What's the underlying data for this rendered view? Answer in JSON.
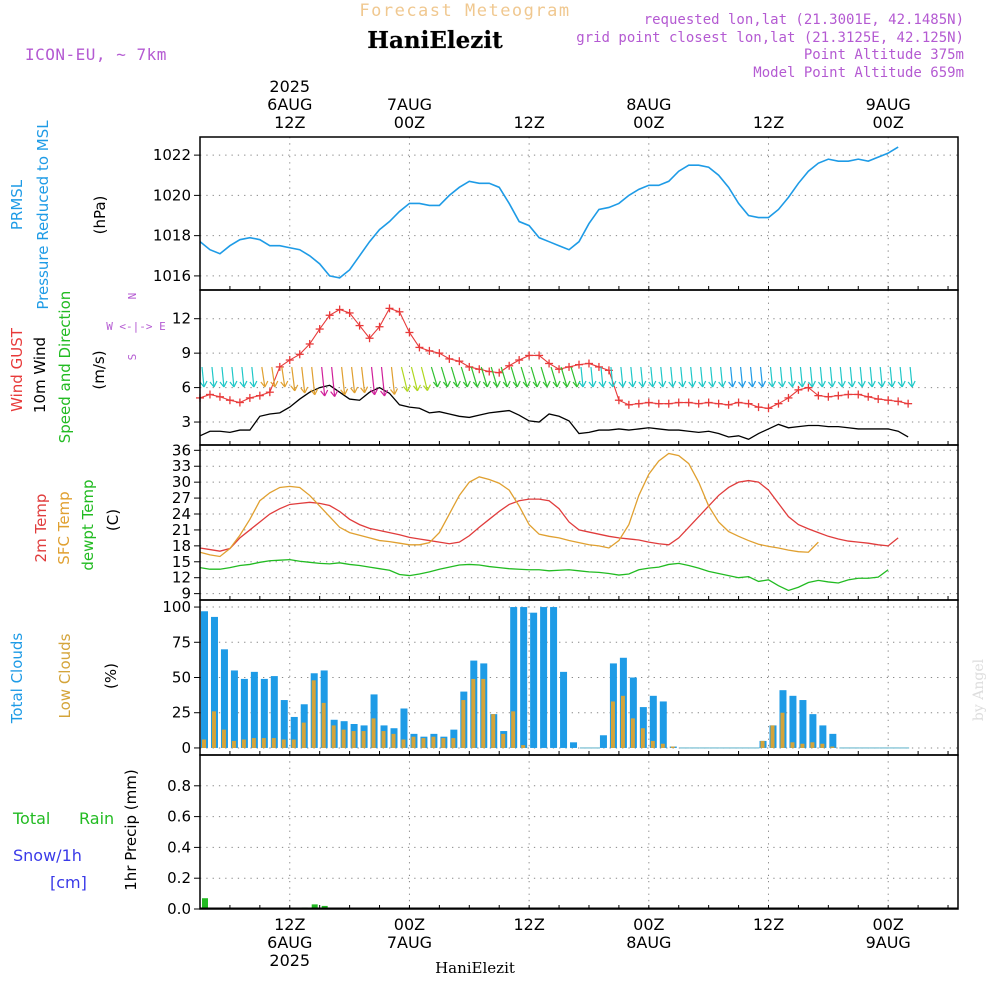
{
  "header": {
    "title": "Forecast Meteogram",
    "location": "HaniElezit",
    "model": "ICON-EU, ~ 7km",
    "requested": "requested lon,lat (21.3001E, 42.1485N)",
    "gridpoint": "grid point closest lon,lat (21.3125E, 42.125N)",
    "point_alt": "Point Altitude 375m",
    "model_alt": "Model Point Altitude 659m",
    "footer": "HaniElezit",
    "watermark": "by Angel"
  },
  "colors": {
    "pressure": "#1e9be6",
    "gust": "#e83a3a",
    "wind": "#000000",
    "temp2m": "#e03c3c",
    "sfc": "#e0a030",
    "dewpt": "#22bb22",
    "total_clouds": "#1e9be6",
    "low_clouds": "#d4a43a",
    "rain": "#22bb22",
    "snow": "#3a3ae8",
    "purple": "#b45ad2",
    "title_orange": "#f0c890"
  },
  "time_axis": {
    "top_labels": [
      {
        "t": 9,
        "lines": [
          "2025",
          "6AUG",
          "12Z"
        ]
      },
      {
        "t": 21,
        "lines": [
          "7AUG",
          "00Z"
        ]
      },
      {
        "t": 33,
        "lines": [
          "12Z"
        ]
      },
      {
        "t": 45,
        "lines": [
          "8AUG",
          "00Z"
        ]
      },
      {
        "t": 57,
        "lines": [
          "12Z"
        ]
      },
      {
        "t": 69,
        "lines": [
          "9AUG",
          "00Z"
        ]
      }
    ],
    "bottom_labels": [
      {
        "t": 9,
        "lines": [
          "12Z",
          "6AUG",
          "2025"
        ]
      },
      {
        "t": 21,
        "lines": [
          "00Z",
          "7AUG"
        ]
      },
      {
        "t": 33,
        "lines": [
          "12Z"
        ]
      },
      {
        "t": 45,
        "lines": [
          "00Z",
          "8AUG"
        ]
      },
      {
        "t": 57,
        "lines": [
          "12Z"
        ]
      },
      {
        "t": 69,
        "lines": [
          "00Z",
          "9AUG"
        ]
      }
    ]
  },
  "panels": {
    "pressure": {
      "labels": [
        "PRMSL",
        "Pressure Reduced to MSL"
      ],
      "unit": "(hPa)"
    },
    "wind": {
      "labels": [
        "Wind GUST",
        "10m Wind",
        "Speed and Direction"
      ],
      "unit": "(m/s)",
      "compass": [
        "N",
        "W <-|-> E",
        "S"
      ]
    },
    "temp": {
      "labels": [
        "2m Temp",
        "SFC Temp",
        "dewpt Temp"
      ],
      "unit": "(C)"
    },
    "clouds": {
      "labels": [
        "Total Clouds",
        "Low Clouds"
      ],
      "unit": "(%)"
    },
    "precip": {
      "labels": [
        "Total",
        "Rain",
        "Snow/1h",
        "[cm]"
      ],
      "unit": "1hr Precip (mm)"
    }
  },
  "chart_data": [
    {
      "type": "line",
      "name": "pressure",
      "ylim": [
        1015.3,
        1022.9
      ],
      "yticks": [
        1016,
        1018,
        1020,
        1022
      ],
      "series": [
        {
          "name": "PRMSL",
          "x_start": 0,
          "step": 1,
          "values": [
            1017.7,
            1017.3,
            1017.1,
            1017.5,
            1017.8,
            1017.9,
            1017.8,
            1017.5,
            1017.5,
            1017.4,
            1017.3,
            1017.0,
            1016.6,
            1016.0,
            1015.9,
            1016.3,
            1017.0,
            1017.7,
            1018.3,
            1018.7,
            1019.2,
            1019.6,
            1019.6,
            1019.5,
            1019.5,
            1020.0,
            1020.4,
            1020.7,
            1020.6,
            1020.6,
            1020.4,
            1019.6,
            1018.7,
            1018.5,
            1017.9,
            1017.7,
            1017.5,
            1017.3,
            1017.7,
            1018.6,
            1019.3,
            1019.4,
            1019.6,
            1020.0,
            1020.3,
            1020.5,
            1020.5,
            1020.7,
            1021.2,
            1021.5,
            1021.5,
            1021.4,
            1021.0,
            1020.4,
            1019.6,
            1019.0,
            1018.9,
            1018.9,
            1019.3,
            1019.9,
            1020.6,
            1021.2,
            1021.6,
            1021.8,
            1021.7,
            1021.7,
            1021.8,
            1021.7,
            1021.9,
            1022.1,
            1022.4
          ]
        }
      ]
    },
    {
      "type": "line",
      "name": "wind",
      "ylim": [
        1.0,
        14.5
      ],
      "yticks": [
        3,
        6,
        9,
        12
      ],
      "series": [
        {
          "name": "Wind GUST",
          "x_start": 0,
          "step": 1,
          "values": [
            5.1,
            5.4,
            5.2,
            4.9,
            4.7,
            5.1,
            5.3,
            5.6,
            7.8,
            8.4,
            8.9,
            9.8,
            11.1,
            12.3,
            12.8,
            12.5,
            11.4,
            10.3,
            11.3,
            12.9,
            12.6,
            10.8,
            9.5,
            9.2,
            9.0,
            8.5,
            8.3,
            7.8,
            7.6,
            7.4,
            7.3,
            7.9,
            8.4,
            8.8,
            8.8,
            8.1,
            7.6,
            7.8,
            8.0,
            8.1,
            7.8,
            7.5,
            4.9,
            4.5,
            4.6,
            4.7,
            4.6,
            4.6,
            4.7,
            4.7,
            4.6,
            4.7,
            4.6,
            4.5,
            4.7,
            4.6,
            4.3,
            4.2,
            4.6,
            5.1,
            5.8,
            6.0,
            5.3,
            5.2,
            5.3,
            5.4,
            5.4,
            5.2,
            5.0,
            4.9,
            4.8,
            4.6
          ]
        },
        {
          "name": "10m Wind",
          "x_start": 0,
          "step": 1,
          "values": [
            1.8,
            2.2,
            2.2,
            2.1,
            2.3,
            2.3,
            3.5,
            3.7,
            3.8,
            4.3,
            5.0,
            5.6,
            6.0,
            6.2,
            5.6,
            5.0,
            4.9,
            5.6,
            6.0,
            5.5,
            4.5,
            4.3,
            4.2,
            3.8,
            3.9,
            3.7,
            3.5,
            3.4,
            3.6,
            3.8,
            3.9,
            4.0,
            3.6,
            3.1,
            3.0,
            3.7,
            3.5,
            3.1,
            2.0,
            2.1,
            2.3,
            2.3,
            2.4,
            2.3,
            2.4,
            2.5,
            2.4,
            2.3,
            2.3,
            2.2,
            2.1,
            2.2,
            2.0,
            1.7,
            1.8,
            1.5,
            2.0,
            2.4,
            2.8,
            2.5,
            2.6,
            2.7,
            2.7,
            2.6,
            2.6,
            2.5,
            2.4,
            2.4,
            2.4,
            2.4,
            2.2,
            1.7
          ]
        }
      ]
    },
    {
      "type": "line",
      "name": "temperature",
      "ylim": [
        7.8,
        37.0
      ],
      "yticks": [
        9,
        12,
        15,
        18,
        21,
        24,
        27,
        30,
        33,
        36
      ],
      "series": [
        {
          "name": "2m Temp",
          "x_start": 0,
          "step": 1,
          "values": [
            17.6,
            17.3,
            17.0,
            17.5,
            19.5,
            21.0,
            22.5,
            24.0,
            25.0,
            25.8,
            26.0,
            26.2,
            26.0,
            25.6,
            24.5,
            23.0,
            22.0,
            21.3,
            20.9,
            20.5,
            20.1,
            19.6,
            19.3,
            19.0,
            18.7,
            18.4,
            18.7,
            19.9,
            21.5,
            23.0,
            24.5,
            25.8,
            26.5,
            26.8,
            26.8,
            26.5,
            25.0,
            22.5,
            21.0,
            20.6,
            20.2,
            19.8,
            19.5,
            19.3,
            19.1,
            18.7,
            18.4,
            18.2,
            19.5,
            21.5,
            23.5,
            25.5,
            27.5,
            29.0,
            30.0,
            30.3,
            30.0,
            28.5,
            26.0,
            23.5,
            22.0,
            21.2,
            20.5,
            19.8,
            19.3,
            18.9,
            18.7,
            18.5,
            18.2,
            18.0,
            19.5
          ]
        },
        {
          "name": "SFC Temp",
          "x_start": 0,
          "step": 1,
          "values": [
            16.8,
            16.3,
            16.0,
            17.5,
            20.0,
            23.0,
            26.5,
            28.0,
            29.0,
            29.2,
            29.0,
            27.5,
            25.5,
            23.5,
            21.5,
            20.5,
            20.0,
            19.5,
            19.0,
            18.8,
            18.5,
            18.2,
            18.2,
            18.6,
            20.5,
            24.0,
            27.5,
            30.0,
            31.0,
            30.5,
            29.8,
            28.5,
            25.5,
            22.0,
            20.2,
            19.8,
            19.5,
            19.0,
            18.6,
            18.2,
            18.0,
            17.6,
            19.0,
            22.0,
            27.5,
            31.5,
            34.0,
            35.4,
            35.0,
            33.5,
            30.0,
            25.5,
            22.5,
            20.7,
            19.8,
            19.0,
            18.3,
            17.9,
            17.6,
            17.2,
            16.9,
            16.8,
            18.7
          ]
        },
        {
          "name": "dewpt Temp",
          "x_start": 0,
          "step": 1,
          "values": [
            13.9,
            13.6,
            13.6,
            13.9,
            14.3,
            14.5,
            14.9,
            15.2,
            15.3,
            15.4,
            15.1,
            14.9,
            14.7,
            14.6,
            14.8,
            14.5,
            14.3,
            14.0,
            13.7,
            13.4,
            12.6,
            12.4,
            12.7,
            13.1,
            13.6,
            14.0,
            14.4,
            14.5,
            14.4,
            14.1,
            13.9,
            13.7,
            13.6,
            13.5,
            13.5,
            13.3,
            13.4,
            13.5,
            13.3,
            13.1,
            13.0,
            12.8,
            12.5,
            12.7,
            13.5,
            13.8,
            14.0,
            14.5,
            14.7,
            14.3,
            13.8,
            13.2,
            12.8,
            12.4,
            12.0,
            12.2,
            11.3,
            11.6,
            10.5,
            9.6,
            10.2,
            11.1,
            11.5,
            11.2,
            11.0,
            11.6,
            11.9,
            11.9,
            12.1,
            13.5
          ]
        }
      ]
    },
    {
      "type": "bar",
      "name": "clouds",
      "ylim": [
        -5,
        105
      ],
      "yticks": [
        0,
        25,
        50,
        75,
        100
      ],
      "series": [
        {
          "name": "Total Clouds",
          "x_start": 0,
          "step": 1,
          "values": [
            97,
            93,
            70,
            55,
            49,
            54,
            49,
            51,
            34,
            22,
            31,
            53,
            55,
            20,
            19,
            17,
            16,
            38,
            16,
            14,
            28,
            10,
            8,
            10,
            8,
            13,
            40,
            62,
            60,
            24,
            12,
            100,
            100,
            96,
            100,
            100,
            54,
            4,
            0,
            0,
            9,
            60,
            64,
            50,
            29,
            37,
            33,
            1,
            0,
            0,
            0,
            0,
            0,
            0,
            0,
            0,
            5,
            16,
            41,
            37,
            34,
            24,
            16,
            10,
            0,
            0,
            0,
            0,
            0,
            0,
            0
          ]
        },
        {
          "name": "Low Clouds",
          "x_start": 0,
          "step": 1,
          "values": [
            6,
            26,
            13,
            5,
            6,
            7,
            7,
            7,
            6,
            6,
            18,
            48,
            32,
            16,
            13,
            12,
            12,
            21,
            12,
            10,
            6,
            8,
            7,
            8,
            7,
            7,
            34,
            49,
            49,
            24,
            10,
            26,
            2,
            0,
            0,
            0,
            0,
            0,
            0,
            0,
            0,
            33,
            37,
            21,
            14,
            5,
            3,
            1,
            0,
            0,
            0,
            0,
            0,
            0,
            0,
            0,
            5,
            16,
            25,
            4,
            3,
            4,
            3,
            1,
            0,
            0,
            0,
            0,
            0,
            0,
            0
          ]
        }
      ]
    },
    {
      "type": "bar",
      "name": "precipitation",
      "ylim": [
        0,
        1.0
      ],
      "yticks": [
        0,
        0.2,
        0.4,
        0.6,
        0.8
      ],
      "series": [
        {
          "name": "Total Rain",
          "x_start": 0,
          "step": 1,
          "values": [
            0.07,
            0,
            0,
            0,
            0,
            0,
            0,
            0,
            0,
            0,
            0.01,
            0.03,
            0.02,
            0,
            0,
            0,
            0,
            0,
            0,
            0,
            0,
            0,
            0,
            0,
            0,
            0,
            0,
            0,
            0,
            0,
            0,
            0,
            0,
            0,
            0,
            0,
            0,
            0,
            0,
            0,
            0,
            0,
            0,
            0,
            0,
            0,
            0,
            0,
            0,
            0,
            0,
            0,
            0,
            0,
            0,
            0,
            0,
            0,
            0,
            0,
            0,
            0,
            0,
            0,
            0,
            0,
            0,
            0,
            0,
            0,
            0
          ]
        }
      ]
    },
    {
      "type": "scatter",
      "name": "wind_direction",
      "series": [
        {
          "name": "arrow_color",
          "values": [
            "c",
            "c",
            "c",
            "c",
            "c",
            "c",
            "o",
            "o",
            "o",
            "o",
            "o",
            "o",
            "m",
            "m",
            "o",
            "o",
            "o",
            "m",
            "m",
            "o",
            "y",
            "y",
            "y",
            "g",
            "g",
            "g",
            "g",
            "g",
            "g",
            "g",
            "g",
            "g",
            "g",
            "g",
            "g",
            "g",
            "g",
            "g",
            "c",
            "c",
            "c",
            "c",
            "c",
            "c",
            "c",
            "c",
            "c",
            "c",
            "c",
            "c",
            "c",
            "c",
            "c",
            "b",
            "b",
            "b",
            "b",
            "c",
            "c",
            "c",
            "c",
            "c",
            "c",
            "c",
            "c",
            "c",
            "c",
            "c",
            "c",
            "c",
            "c",
            "c"
          ]
        }
      ]
    }
  ]
}
